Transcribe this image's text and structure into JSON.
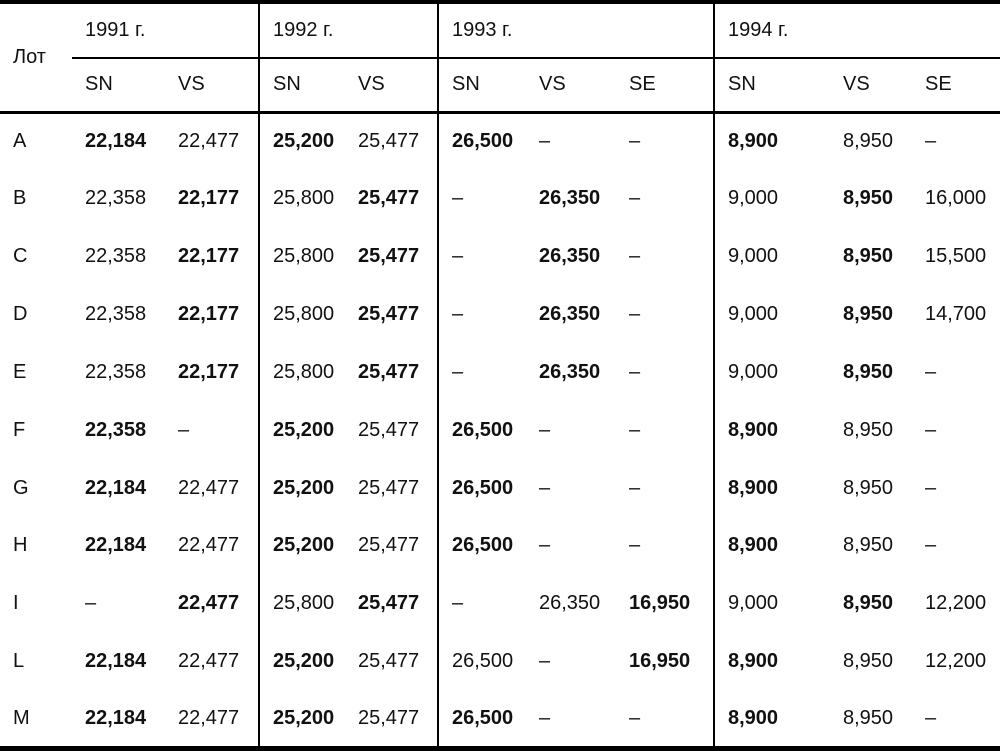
{
  "table": {
    "corner_label": "Лот",
    "year_groups": [
      {
        "label": "1991 г.",
        "cols": [
          "SN",
          "VS"
        ]
      },
      {
        "label": "1992 г.",
        "cols": [
          "SN",
          "VS"
        ]
      },
      {
        "label": "1993 г.",
        "cols": [
          "SN",
          "VS",
          "SE"
        ]
      },
      {
        "label": "1994 г.",
        "cols": [
          "SN",
          "VS",
          "SE"
        ]
      }
    ],
    "col_keys": [
      "sn-1991",
      "vs-1991",
      "sn-1992",
      "vs-1992",
      "sn-1993",
      "vs-1993",
      "se-1993",
      "sn-1994",
      "vs-1994",
      "se-1994"
    ],
    "vline_after_indices": [
      1,
      3,
      6
    ],
    "rows": [
      {
        "lot": "A",
        "cells": [
          {
            "v": "22,184",
            "b": true
          },
          {
            "v": "22,477"
          },
          {
            "v": "25,200",
            "b": true
          },
          {
            "v": "25,477"
          },
          {
            "v": "26,500",
            "b": true
          },
          {
            "v": "–"
          },
          {
            "v": "–"
          },
          {
            "v": "8,900",
            "b": true
          },
          {
            "v": "8,950"
          },
          {
            "v": "–"
          }
        ]
      },
      {
        "lot": "B",
        "cells": [
          {
            "v": "22,358"
          },
          {
            "v": "22,177",
            "b": true
          },
          {
            "v": "25,800"
          },
          {
            "v": "25,477",
            "b": true
          },
          {
            "v": "–"
          },
          {
            "v": "26,350",
            "b": true
          },
          {
            "v": "–"
          },
          {
            "v": "9,000"
          },
          {
            "v": "8,950",
            "b": true
          },
          {
            "v": "16,000"
          }
        ]
      },
      {
        "lot": "C",
        "cells": [
          {
            "v": "22,358"
          },
          {
            "v": "22,177",
            "b": true
          },
          {
            "v": "25,800"
          },
          {
            "v": "25,477",
            "b": true
          },
          {
            "v": "–"
          },
          {
            "v": "26,350",
            "b": true
          },
          {
            "v": "–"
          },
          {
            "v": "9,000"
          },
          {
            "v": "8,950",
            "b": true
          },
          {
            "v": "15,500"
          }
        ]
      },
      {
        "lot": "D",
        "cells": [
          {
            "v": "22,358"
          },
          {
            "v": "22,177",
            "b": true
          },
          {
            "v": "25,800"
          },
          {
            "v": "25,477",
            "b": true
          },
          {
            "v": "–"
          },
          {
            "v": "26,350",
            "b": true
          },
          {
            "v": "–"
          },
          {
            "v": "9,000"
          },
          {
            "v": "8,950",
            "b": true
          },
          {
            "v": "14,700"
          }
        ]
      },
      {
        "lot": "E",
        "cells": [
          {
            "v": "22,358"
          },
          {
            "v": "22,177",
            "b": true
          },
          {
            "v": "25,800"
          },
          {
            "v": "25,477",
            "b": true
          },
          {
            "v": "–"
          },
          {
            "v": "26,350",
            "b": true
          },
          {
            "v": "–"
          },
          {
            "v": "9,000"
          },
          {
            "v": "8,950",
            "b": true
          },
          {
            "v": "–"
          }
        ]
      },
      {
        "lot": "F",
        "cells": [
          {
            "v": "22,358",
            "b": true
          },
          {
            "v": "–"
          },
          {
            "v": "25,200",
            "b": true
          },
          {
            "v": "25,477"
          },
          {
            "v": "26,500",
            "b": true
          },
          {
            "v": "–"
          },
          {
            "v": "–"
          },
          {
            "v": "8,900",
            "b": true
          },
          {
            "v": "8,950"
          },
          {
            "v": "–"
          }
        ]
      },
      {
        "lot": "G",
        "cells": [
          {
            "v": "22,184",
            "b": true
          },
          {
            "v": "22,477"
          },
          {
            "v": "25,200",
            "b": true
          },
          {
            "v": "25,477"
          },
          {
            "v": "26,500",
            "b": true
          },
          {
            "v": "–"
          },
          {
            "v": "–"
          },
          {
            "v": "8,900",
            "b": true
          },
          {
            "v": "8,950"
          },
          {
            "v": "–"
          }
        ]
      },
      {
        "lot": "H",
        "cells": [
          {
            "v": "22,184",
            "b": true
          },
          {
            "v": "22,477"
          },
          {
            "v": "25,200",
            "b": true
          },
          {
            "v": "25,477"
          },
          {
            "v": "26,500",
            "b": true
          },
          {
            "v": "–"
          },
          {
            "v": "–"
          },
          {
            "v": "8,900",
            "b": true
          },
          {
            "v": "8,950"
          },
          {
            "v": "–"
          }
        ]
      },
      {
        "lot": "I",
        "cells": [
          {
            "v": "–"
          },
          {
            "v": "22,477",
            "b": true
          },
          {
            "v": "25,800"
          },
          {
            "v": "25,477",
            "b": true
          },
          {
            "v": "–"
          },
          {
            "v": "26,350"
          },
          {
            "v": "16,950",
            "b": true
          },
          {
            "v": "9,000"
          },
          {
            "v": "8,950",
            "b": true
          },
          {
            "v": "12,200"
          }
        ]
      },
      {
        "lot": "L",
        "cells": [
          {
            "v": "22,184",
            "b": true
          },
          {
            "v": "22,477"
          },
          {
            "v": "25,200",
            "b": true
          },
          {
            "v": "25,477"
          },
          {
            "v": "26,500"
          },
          {
            "v": "–"
          },
          {
            "v": "16,950",
            "b": true
          },
          {
            "v": "8,900",
            "b": true
          },
          {
            "v": "8,950"
          },
          {
            "v": "12,200"
          }
        ]
      },
      {
        "lot": "M",
        "cells": [
          {
            "v": "22,184",
            "b": true
          },
          {
            "v": "22,477"
          },
          {
            "v": "25,200",
            "b": true
          },
          {
            "v": "25,477"
          },
          {
            "v": "26,500",
            "b": true
          },
          {
            "v": "–"
          },
          {
            "v": "–"
          },
          {
            "v": "8,900",
            "b": true
          },
          {
            "v": "8,950"
          },
          {
            "v": "–"
          }
        ]
      }
    ]
  }
}
